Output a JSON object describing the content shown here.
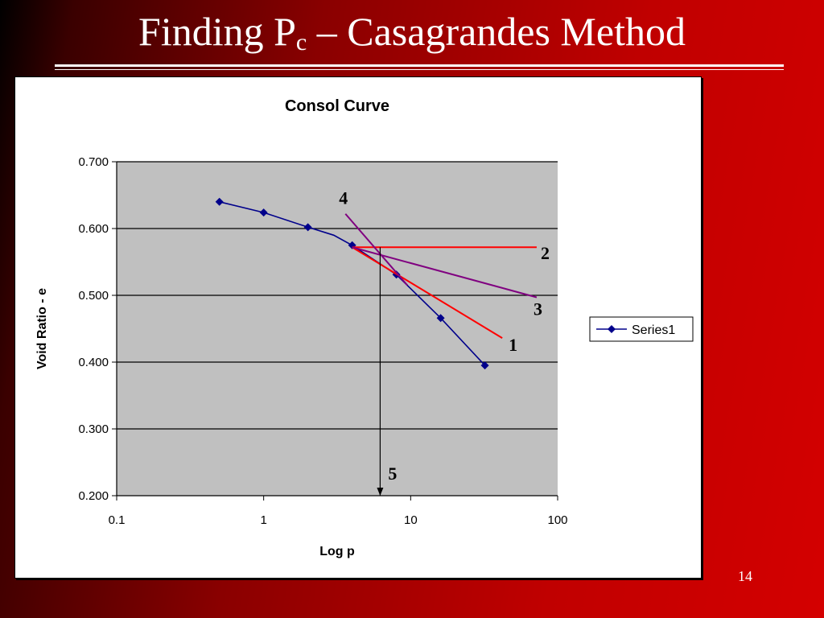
{
  "slide": {
    "title_main": "Finding P",
    "title_sub": "c",
    "title_rest": " – Casagrandes Method",
    "page_number": "14"
  },
  "colors": {
    "series": "#00008b",
    "construction_red": "#ff0000",
    "construction_purple": "#800080",
    "plot_background": "#c0c0c0"
  },
  "chart_data": {
    "type": "line",
    "title": "Consol Curve",
    "xlabel": "Log p",
    "ylabel": "Void Ratio - e",
    "x_scale": "log",
    "xlim": [
      0.1,
      100
    ],
    "ylim": [
      0.2,
      0.7
    ],
    "x_ticks": [
      "0.1",
      "1",
      "10",
      "100"
    ],
    "y_ticks": [
      "0.200",
      "0.300",
      "0.400",
      "0.500",
      "0.600",
      "0.700"
    ],
    "grid": "horizontal",
    "legend": "right",
    "series": [
      {
        "name": "Series1",
        "marker": "diamond",
        "x": [
          0.5,
          1,
          2,
          3,
          4,
          8,
          16,
          32
        ],
        "y": [
          0.64,
          0.624,
          0.602,
          0.59,
          0.575,
          0.531,
          0.466,
          0.395
        ],
        "marker_points": [
          0,
          1,
          2,
          4,
          5,
          6,
          7
        ]
      }
    ],
    "construction_lines": [
      {
        "label": "1",
        "color": "red",
        "from": [
          4,
          0.572
        ],
        "to": [
          42,
          0.436
        ]
      },
      {
        "label": "2",
        "color": "red",
        "from": [
          4,
          0.572
        ],
        "to": [
          72,
          0.572
        ]
      },
      {
        "label": "3",
        "color": "purple",
        "from": [
          4,
          0.572
        ],
        "to": [
          72,
          0.497
        ]
      },
      {
        "label": "4",
        "color": "purple",
        "from": [
          3.6,
          0.622
        ],
        "to": [
          9.5,
          0.515
        ]
      },
      {
        "label": "5",
        "color": "black",
        "from": [
          6.2,
          0.572
        ],
        "to": [
          6.2,
          0.2
        ],
        "arrow": true
      }
    ]
  }
}
